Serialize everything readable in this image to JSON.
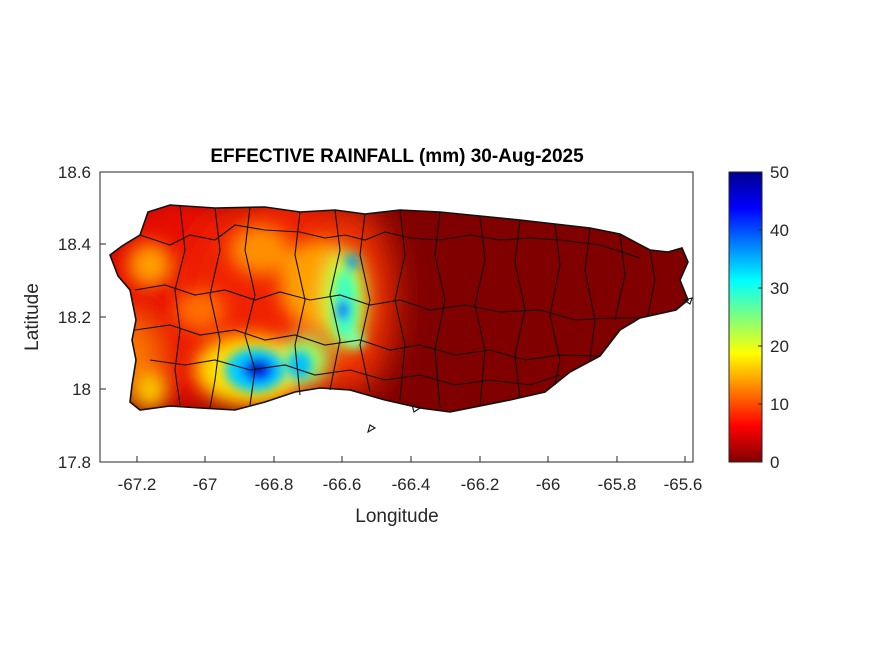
{
  "title": "EFFECTIVE RAINFALL (mm) 30-Aug-2025",
  "xlabel": "Longitude",
  "ylabel": "Latitude",
  "x_ticks": [
    "-67.2",
    "-67",
    "-66.8",
    "-66.6",
    "-66.4",
    "-66.2",
    "-66",
    "-65.8",
    "-65.6"
  ],
  "y_ticks": [
    "18.6",
    "18.4",
    "18.2",
    "18",
    "17.8"
  ],
  "colorbar": {
    "ticks": [
      "50",
      "40",
      "30",
      "20",
      "10",
      "0"
    ],
    "range": [
      0,
      50
    ],
    "colormap": "jet"
  },
  "colors": {
    "low": "#800000",
    "mid_low": "#ff0000",
    "mid": "#ffff00",
    "mid_high": "#00ffff",
    "high": "#0000a0",
    "outline": "#000000"
  },
  "chart_data": {
    "type": "heatmap",
    "title": "EFFECTIVE RAINFALL (mm) 30-Aug-2025",
    "xlabel": "Longitude",
    "ylabel": "Latitude",
    "xlim": [
      -67.3,
      -65.59
    ],
    "ylim": [
      17.8,
      18.6
    ],
    "clim": [
      0,
      50
    ],
    "colormap": "jet",
    "grid": false,
    "region": "Puerto Rico municipalities",
    "rainfall_hotspots": [
      {
        "lon": -66.84,
        "lat": 18.06,
        "value": 48
      },
      {
        "lon": -66.58,
        "lat": 18.22,
        "value": 42
      },
      {
        "lon": -66.56,
        "lat": 18.33,
        "value": 35
      },
      {
        "lon": -66.7,
        "lat": 18.06,
        "value": 32
      },
      {
        "lon": -66.55,
        "lat": 18.14,
        "value": 28
      },
      {
        "lon": -66.78,
        "lat": 18.24,
        "value": 18
      },
      {
        "lon": -67.0,
        "lat": 18.32,
        "value": 17
      },
      {
        "lon": -67.22,
        "lat": 18.36,
        "value": 18
      },
      {
        "lon": -67.18,
        "lat": 18.0,
        "value": 15
      }
    ],
    "east_half_value": 0
  }
}
